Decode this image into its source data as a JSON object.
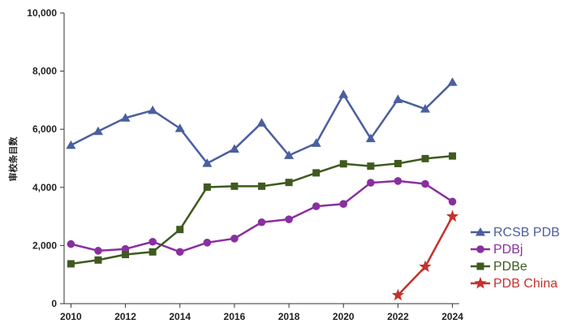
{
  "chart_data": {
    "type": "line",
    "title": "",
    "xlabel": "",
    "ylabel": "审校条目数",
    "x": [
      2010,
      2011,
      2012,
      2013,
      2014,
      2015,
      2016,
      2017,
      2018,
      2019,
      2020,
      2021,
      2022,
      2023,
      2024
    ],
    "x_ticks": [
      "2010",
      "2012",
      "2014",
      "2016",
      "2018",
      "2020",
      "2022",
      "2024"
    ],
    "y_ticks": [
      "0",
      "2,000",
      "4,000",
      "6,000",
      "8,000",
      "10,000"
    ],
    "xlim": [
      2009.75,
      2024.25
    ],
    "ylim": [
      0,
      10000
    ],
    "grid": false,
    "legend_position": "bottom-right",
    "series": [
      {
        "name": "RCSB PDB",
        "color": "#4a5f9e",
        "marker": "triangle",
        "x": [
          2010,
          2011,
          2012,
          2013,
          2014,
          2015,
          2016,
          2017,
          2018,
          2019,
          2020,
          2021,
          2022,
          2023,
          2024
        ],
        "values": [
          5450,
          5930,
          6390,
          6650,
          6030,
          4830,
          5320,
          6220,
          5100,
          5520,
          7200,
          5680,
          7030,
          6700,
          7620
        ]
      },
      {
        "name": "PDBj",
        "color": "#8a2f9e",
        "marker": "circle",
        "x": [
          2010,
          2011,
          2012,
          2013,
          2014,
          2015,
          2016,
          2017,
          2018,
          2019,
          2020,
          2021,
          2022,
          2023,
          2024
        ],
        "values": [
          2050,
          1820,
          1880,
          2130,
          1780,
          2100,
          2240,
          2800,
          2900,
          3350,
          3430,
          4160,
          4220,
          4120,
          3510
        ]
      },
      {
        "name": "PDBe",
        "color": "#3f5a1f",
        "marker": "square",
        "x": [
          2010,
          2011,
          2012,
          2013,
          2014,
          2015,
          2016,
          2017,
          2018,
          2019,
          2020,
          2021,
          2022,
          2023,
          2024
        ],
        "values": [
          1370,
          1500,
          1690,
          1780,
          2550,
          4010,
          4040,
          4040,
          4170,
          4500,
          4810,
          4730,
          4820,
          4990,
          5080
        ]
      },
      {
        "name": "PDB China",
        "color": "#c4322d",
        "marker": "star",
        "x": [
          2022,
          2023,
          2024
        ],
        "values": [
          290,
          1270,
          3000
        ]
      }
    ]
  }
}
